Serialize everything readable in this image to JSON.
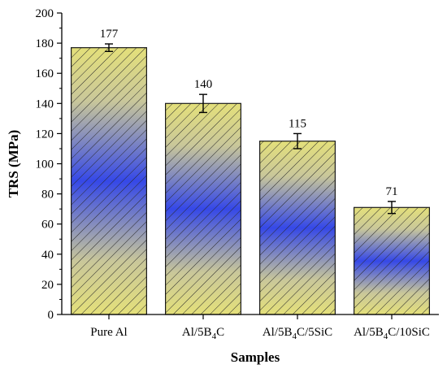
{
  "chart_data": {
    "type": "bar",
    "title": "",
    "xlabel": "Samples",
    "ylabel": "TRS (MPa)",
    "ylim": [
      0,
      200
    ],
    "yticks": [
      "0",
      "20",
      "40",
      "60",
      "80",
      "100",
      "120",
      "140",
      "160",
      "180",
      "200"
    ],
    "categories": [
      "Pure Al",
      "Al/5B4C",
      "Al/5B4C/5SiC",
      "Al/5B4C/10SiC"
    ],
    "category_labels": [
      {
        "pre": "Pure Al",
        "sub": "",
        "post": ""
      },
      {
        "pre": "Al/5B",
        "sub": "4",
        "post": "C"
      },
      {
        "pre": "Al/5B",
        "sub": "4",
        "post": "C/5SiC"
      },
      {
        "pre": "Al/5B",
        "sub": "4",
        "post": "C/10SiC"
      }
    ],
    "values": [
      177,
      140,
      115,
      71
    ],
    "errors": [
      2.5,
      6,
      5,
      4
    ],
    "data_labels": [
      "177",
      "140",
      "115",
      "71"
    ],
    "grid": false,
    "colors": {
      "bar_edge": "#1a1a1a",
      "yellow": "#e4e07a",
      "blue": "#3548e8",
      "hatch": "#2a2a2a"
    }
  }
}
